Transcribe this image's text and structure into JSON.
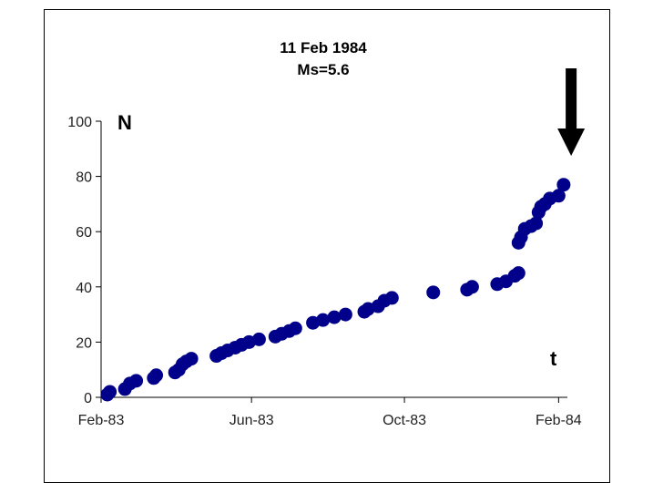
{
  "chart_data": {
    "type": "scatter",
    "title": "11 Feb 1984",
    "subtitle": "Ms=5.6",
    "ylabel": "N",
    "xlabel": "t",
    "x_ticks": [
      "Feb-83",
      "Jun-83",
      "Oct-83",
      "Feb-84"
    ],
    "x_tick_dates": [
      "1983-02-01",
      "1983-06-01",
      "1983-10-01",
      "1984-02-01"
    ],
    "xlim": [
      "1983-02-01",
      "1984-02-08"
    ],
    "ylim": [
      0,
      100
    ],
    "y_ticks": [
      0,
      20,
      40,
      60,
      80,
      100
    ],
    "grid": false,
    "marker_color": "#00008B",
    "event_arrow_date": "1984-02-11",
    "series": [
      {
        "points": [
          [
            "1983-02-06",
            1
          ],
          [
            "1983-02-08",
            2
          ],
          [
            "1983-02-20",
            3
          ],
          [
            "1983-02-24",
            5
          ],
          [
            "1983-03-01",
            6
          ],
          [
            "1983-03-15",
            7
          ],
          [
            "1983-03-17",
            8
          ],
          [
            "1983-04-01",
            9
          ],
          [
            "1983-04-04",
            10
          ],
          [
            "1983-04-07",
            12
          ],
          [
            "1983-04-10",
            13
          ],
          [
            "1983-04-14",
            14
          ],
          [
            "1983-05-04",
            15
          ],
          [
            "1983-05-08",
            16
          ],
          [
            "1983-05-13",
            17
          ],
          [
            "1983-05-19",
            18
          ],
          [
            "1983-05-24",
            19
          ],
          [
            "1983-05-30",
            20
          ],
          [
            "1983-06-07",
            21
          ],
          [
            "1983-06-20",
            22
          ],
          [
            "1983-06-25",
            23
          ],
          [
            "1983-07-01",
            24
          ],
          [
            "1983-07-06",
            25
          ],
          [
            "1983-07-20",
            27
          ],
          [
            "1983-07-28",
            28
          ],
          [
            "1983-08-06",
            29
          ],
          [
            "1983-08-15",
            30
          ],
          [
            "1983-08-30",
            31
          ],
          [
            "1983-09-02",
            32
          ],
          [
            "1983-09-10",
            33
          ],
          [
            "1983-09-15",
            35
          ],
          [
            "1983-09-21",
            36
          ],
          [
            "1983-10-24",
            38
          ],
          [
            "1983-11-20",
            39
          ],
          [
            "1983-11-24",
            40
          ],
          [
            "1983-12-14",
            41
          ],
          [
            "1983-12-21",
            42
          ],
          [
            "1983-12-28",
            44
          ],
          [
            "1983-12-31",
            45
          ],
          [
            "1983-12-31",
            56
          ],
          [
            "1984-01-02",
            58
          ],
          [
            "1984-01-05",
            61
          ],
          [
            "1984-01-10",
            62
          ],
          [
            "1984-01-14",
            63
          ],
          [
            "1984-01-16",
            67
          ],
          [
            "1984-01-18",
            69
          ],
          [
            "1984-01-21",
            70
          ],
          [
            "1984-01-25",
            72
          ],
          [
            "1984-02-01",
            73
          ],
          [
            "1984-02-05",
            77
          ]
        ]
      }
    ]
  }
}
